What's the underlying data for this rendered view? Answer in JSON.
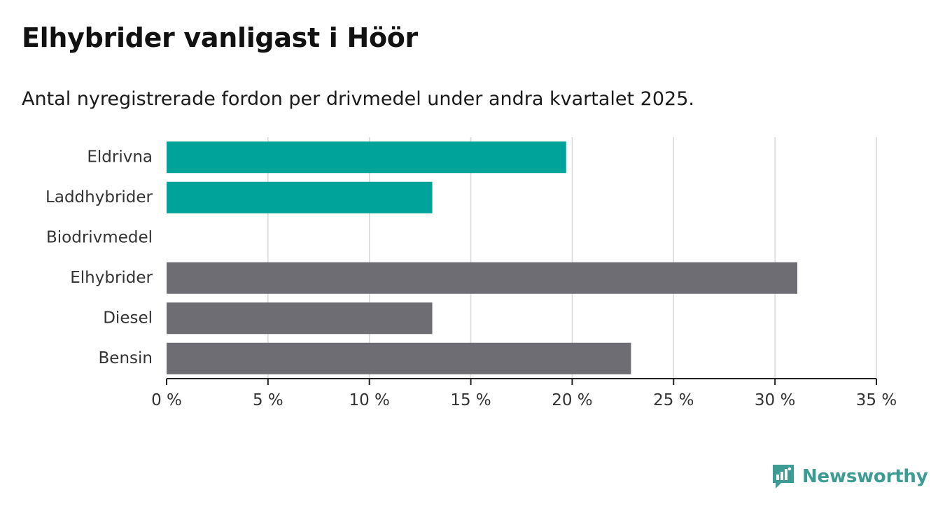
{
  "title": "Elhybrider vanligast i Höör",
  "subtitle": "Antal nyregistrerade fordon per drivmedel under andra kvartalet 2025.",
  "brand": {
    "name": "Newsworthy",
    "logo_icon": "bar-chart-flag-icon"
  },
  "colors": {
    "highlight": "#00a39a",
    "default": "#6e6d74",
    "grid": "#d9d9d9",
    "axis": "#222222",
    "brand": "#3c9b92"
  },
  "chart_data": {
    "type": "bar",
    "orientation": "horizontal",
    "categories": [
      "Eldrivna",
      "Laddhybrider",
      "Biodrivmedel",
      "Elhybrider",
      "Diesel",
      "Bensin"
    ],
    "values": [
      19.7,
      13.1,
      0,
      31.1,
      13.1,
      22.9
    ],
    "bar_colors": [
      "#00a39a",
      "#00a39a",
      "#6e6d74",
      "#6e6d74",
      "#6e6d74",
      "#6e6d74"
    ],
    "unit": "%",
    "xlim": [
      0,
      35
    ],
    "xticks": [
      0,
      5,
      10,
      15,
      20,
      25,
      30,
      35
    ],
    "xtick_labels": [
      "0 %",
      "5 %",
      "10 %",
      "15 %",
      "20 %",
      "25 %",
      "30 %",
      "35 %"
    ],
    "grid": "vertical",
    "legend": "none"
  }
}
